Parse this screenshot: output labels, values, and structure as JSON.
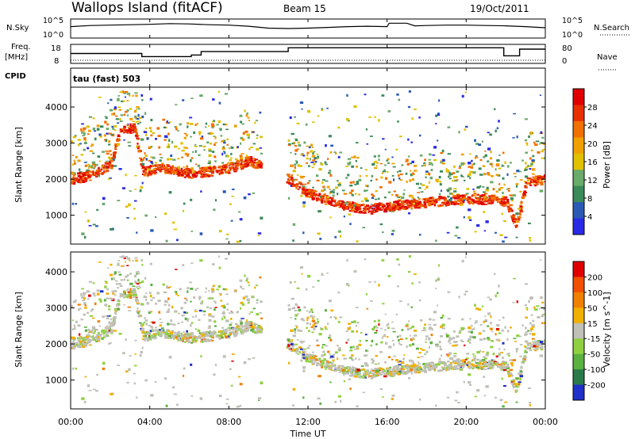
{
  "header": {
    "title": "Wallops Island (fitACF)",
    "beam": "Beam 15",
    "date": "19/Oct/2011"
  },
  "labels": {
    "nsky": "N.Sky",
    "nsearch": "N.Search",
    "freq": "Freq.",
    "freq_unit": "[MHz]",
    "cpid": "CPID",
    "nave": "Nave",
    "cpid_text": "tau (fast) 503",
    "noise_hi": "10^5",
    "noise_lo": "10^0",
    "freq_hi": "18",
    "freq_lo": "8",
    "nave_hi": "80",
    "nave_lo": "0"
  },
  "colors": {
    "power": [
      "#2a2ae6",
      "#2a5ab4",
      "#3a8a5a",
      "#6aaa6a",
      "#e0c000",
      "#f0a000",
      "#f07000",
      "#e83000",
      "#e00000"
    ],
    "velocity": [
      "#2030c8",
      "#2a7a4a",
      "#5ab040",
      "#90d040",
      "#c0c0b8",
      "#f0b000",
      "#f08000",
      "#f05000",
      "#e00000"
    ]
  },
  "chart_data": [
    {
      "type": "line",
      "name": "noise-panel",
      "ylabel_left": "N.Sky",
      "ylabel_right": "N.Search",
      "series": [
        {
          "name": "N.Sky",
          "x": [
            0,
            1,
            2,
            3,
            4,
            5,
            6,
            7,
            8,
            9,
            10,
            11,
            12,
            13,
            14,
            15,
            16,
            16.1,
            17,
            17.4,
            18,
            19,
            20,
            21,
            22,
            23,
            24
          ],
          "values": [
            3.0,
            3.3,
            3.4,
            3.5,
            3.6,
            3.8,
            3.7,
            3.5,
            3.4,
            3.1,
            2.6,
            2.5,
            2.6,
            2.8,
            3.0,
            3.1,
            3.0,
            3.9,
            3.9,
            3.2,
            3.3,
            3.4,
            3.4,
            3.3,
            3.2,
            3.0,
            2.7
          ]
        }
      ]
    },
    {
      "type": "line",
      "name": "frequency-panel",
      "ylabel_left": "Freq. [MHz]",
      "ylabel_right": "Nave",
      "series": [
        {
          "name": "Freq.",
          "x": [
            0,
            3.6,
            3.6,
            6.1,
            6.1,
            6.6,
            6.6,
            11.0,
            11.0,
            21.9,
            21.9,
            22.7,
            22.7,
            24
          ],
          "values": [
            13.2,
            13.2,
            11.6,
            11.6,
            12.4,
            12.4,
            14.2,
            14.2,
            16.2,
            16.2,
            12.0,
            12.0,
            15.5,
            15.5
          ]
        }
      ]
    },
    {
      "type": "heatmap",
      "name": "power-panel",
      "ylabel": "Slant Range [km]",
      "colorbar_label": "Power [dB]",
      "colorbar_ticks": [
        "28",
        "24",
        "20",
        "16",
        "12",
        "8",
        "4"
      ],
      "yticks": [
        "1000",
        "2000",
        "3000",
        "4000"
      ],
      "ylim": [
        200,
        4550
      ],
      "xlim": [
        0,
        24
      ],
      "echo_bands_range_km": [
        [
          0,
          2000
        ],
        [
          1,
          2100
        ],
        [
          2,
          2400
        ],
        [
          2.5,
          3400
        ],
        [
          3.2,
          3400
        ],
        [
          3.6,
          2200
        ],
        [
          4.5,
          2300
        ],
        [
          6,
          2150
        ],
        [
          7,
          2200
        ],
        [
          8,
          2300
        ],
        [
          9,
          2500
        ],
        [
          11,
          2000
        ],
        [
          12,
          1600
        ],
        [
          13,
          1400
        ],
        [
          14,
          1250
        ],
        [
          15,
          1150
        ],
        [
          16,
          1250
        ],
        [
          18,
          1350
        ],
        [
          20,
          1450
        ],
        [
          22,
          1400
        ],
        [
          22.5,
          700
        ],
        [
          23,
          1900
        ],
        [
          24,
          2000
        ]
      ]
    },
    {
      "type": "heatmap",
      "name": "velocity-panel",
      "ylabel": "Slant Range [km]",
      "xlabel": "Time UT",
      "colorbar_label": "Velocity [m s^-1]",
      "colorbar_ticks": [
        "200",
        "100",
        "50",
        "15",
        "-15",
        "-50",
        "-100",
        "-200"
      ],
      "yticks": [
        "1000",
        "2000",
        "3000",
        "4000"
      ],
      "xticks": [
        "00:00",
        "04:00",
        "08:00",
        "12:00",
        "16:00",
        "20:00",
        "00:00"
      ],
      "ylim": [
        200,
        4550
      ],
      "xlim": [
        0,
        24
      ]
    }
  ]
}
